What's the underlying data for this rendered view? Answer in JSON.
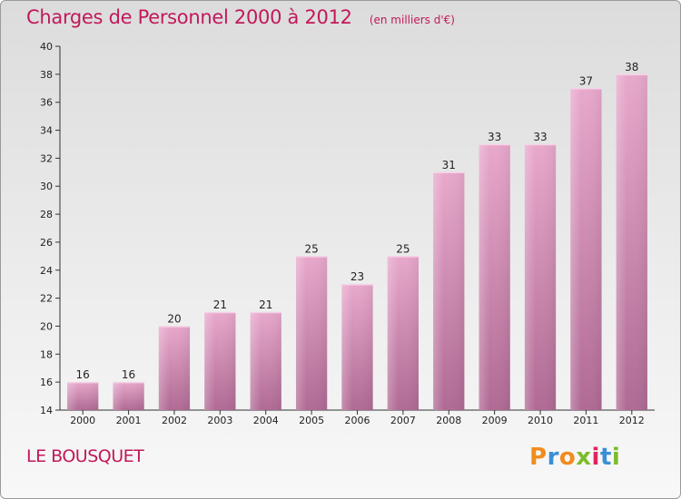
{
  "header": {
    "title": "Charges de Personnel 2000 à 2012",
    "subtitle": "(en milliers d'€)"
  },
  "footer": {
    "commune": "LE BOUSQUET",
    "logo_text": "Proxiti",
    "logo_colors": [
      "#f08c1e",
      "#3b8fd4",
      "#f08c1e",
      "#7cbc2c",
      "#e0245e",
      "#3b8fd4",
      "#7cbc2c"
    ]
  },
  "colors": {
    "title": "#c2185b",
    "bar_top": "#e8a8cc",
    "bar_bottom": "#b06a94"
  },
  "chart_data": {
    "type": "bar",
    "title": "Charges de Personnel 2000 à 2012",
    "subtitle": "(en milliers d'€)",
    "categories": [
      "2000",
      "2001",
      "2002",
      "2003",
      "2004",
      "2005",
      "2006",
      "2007",
      "2008",
      "2009",
      "2010",
      "2011",
      "2012"
    ],
    "values": [
      16,
      16,
      20,
      21,
      21,
      25,
      23,
      25,
      31,
      33,
      33,
      37,
      38
    ],
    "ylim": [
      14,
      40
    ],
    "yticks": [
      14,
      16,
      18,
      20,
      22,
      24,
      26,
      28,
      30,
      32,
      34,
      36,
      38,
      40
    ],
    "grid": false,
    "data_labels": true
  }
}
